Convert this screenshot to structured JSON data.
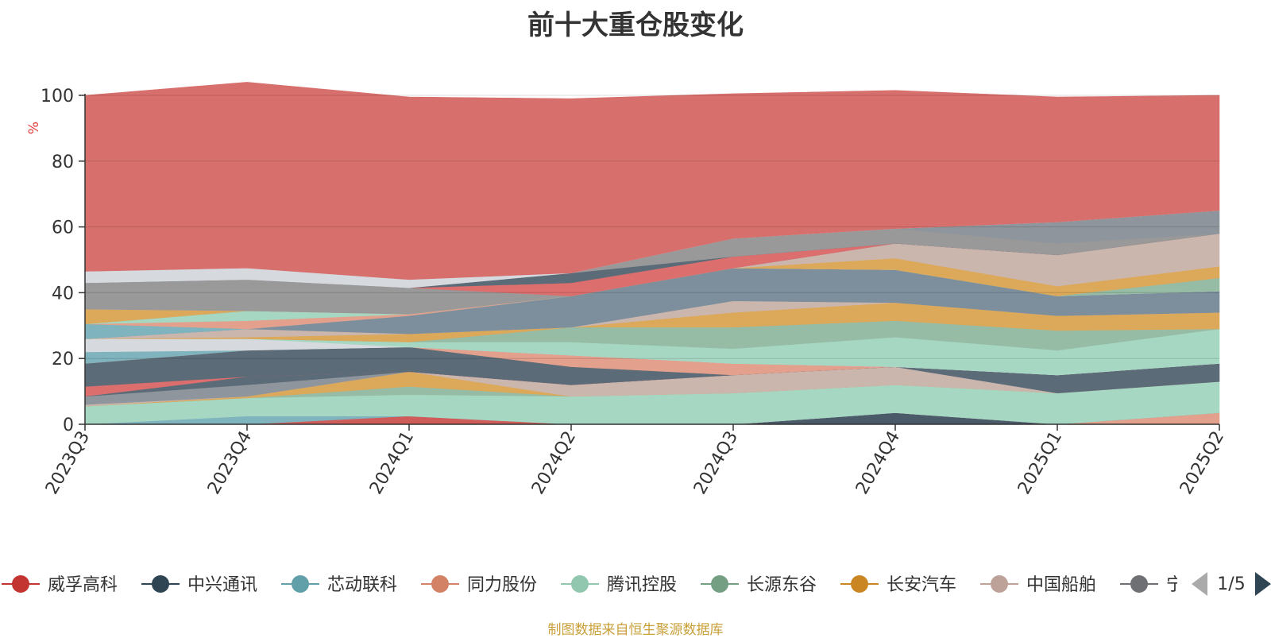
{
  "chart_data": {
    "type": "area",
    "title": "前十大重仓股变化",
    "ylabel": "%",
    "ylim": [
      0,
      100
    ],
    "yticks": [
      0,
      20,
      40,
      60,
      80,
      100
    ],
    "grid": true,
    "x": [
      "2023Q3",
      "2023Q4",
      "2024Q1",
      "2024Q2",
      "2024Q3",
      "2024Q4",
      "2025Q1",
      "2025Q2"
    ],
    "series": [
      {
        "name": "中兴通讯",
        "color": "#4a5a68",
        "values": [
          0,
          0,
          0,
          0,
          0,
          3.5,
          0,
          0
        ]
      },
      {
        "name": "同力股份",
        "color": "#e3a08c",
        "values": [
          0,
          0,
          0,
          0,
          0,
          0,
          0,
          3.5
        ]
      },
      {
        "name": "威孚高科",
        "color": "#d05c5a",
        "values": [
          0,
          0,
          2.5,
          0,
          0,
          0,
          0,
          0
        ]
      },
      {
        "name": "芯动联科",
        "color": "#7fb3bd",
        "values": [
          0,
          2.5,
          0,
          0,
          0,
          0,
          0,
          0
        ]
      },
      {
        "name": "腾讯控股",
        "color": "#a6d7c2",
        "values": [
          5.5,
          5.5,
          6.5,
          8.5,
          9.5,
          8.5,
          9.5,
          9.5
        ]
      },
      {
        "name": "长源东谷",
        "color": "#96bca5",
        "values": [
          0,
          0,
          2.5,
          0,
          0,
          0,
          0,
          0
        ]
      },
      {
        "name": "长安汽车",
        "color": "#dca85a",
        "values": [
          0,
          0.5,
          4.5,
          0,
          0,
          0,
          0,
          0
        ]
      },
      {
        "name": "中国船舶",
        "color": "#cbb6ae",
        "values": [
          0.5,
          0,
          0,
          3.5,
          5.5,
          5.5,
          0,
          0
        ]
      },
      {
        "name": "宁德时代",
        "color": "#8e959c",
        "values": [
          2.5,
          3.5,
          0,
          0,
          0,
          0,
          0,
          0
        ]
      },
      {
        "name": "中兴通讯",
        "color": "#5c6b78",
        "values": [
          0,
          2.5,
          0,
          0,
          0,
          0,
          5.5,
          5.5
        ]
      },
      {
        "name": "威孚高科",
        "color": "#dc6e6e",
        "values": [
          3,
          0,
          0,
          0,
          0,
          0,
          0,
          0
        ]
      },
      {
        "name": "中兴通讯",
        "color": "#5c6b78",
        "values": [
          7,
          8,
          7.5,
          5.5,
          0,
          0,
          0,
          0
        ]
      },
      {
        "name": "同力股份",
        "color": "#e3a08c",
        "values": [
          0,
          0,
          0,
          3.5,
          3.5,
          0,
          0,
          0
        ]
      },
      {
        "name": "芯动联科",
        "color": "#7fb3bd",
        "values": [
          3.5,
          0,
          0,
          0,
          0,
          0,
          0,
          0
        ]
      },
      {
        "name": "宁德时代",
        "color": "#d6dade",
        "values": [
          4,
          3.5,
          0,
          0,
          0,
          0,
          0,
          0
        ]
      },
      {
        "name": "腾讯控股",
        "color": "#a6d7c2",
        "values": [
          0,
          0,
          1.5,
          4,
          4.5,
          9,
          7.5,
          10.5
        ]
      },
      {
        "name": "长源东谷",
        "color": "#96bca5",
        "values": [
          0,
          0,
          0,
          4.5,
          6.5,
          5,
          6,
          0
        ]
      },
      {
        "name": "长安汽车",
        "color": "#dca85a",
        "values": [
          0,
          0.5,
          2.5,
          0,
          4.5,
          5.5,
          4.5,
          5
        ]
      },
      {
        "name": "中国船舶",
        "color": "#cbb6ae",
        "values": [
          0,
          2.5,
          0,
          0,
          3.5,
          0,
          0,
          0
        ]
      },
      {
        "name": "宁德时代",
        "color": "#7d8f9c",
        "values": [
          0,
          0,
          5.5,
          9.5,
          10,
          10,
          6,
          6.5
        ]
      },
      {
        "name": "芯动联科",
        "color": "#7fb3bd",
        "values": [
          4.5,
          0,
          0,
          0,
          0,
          0,
          0,
          0
        ]
      },
      {
        "name": "同力股份",
        "color": "#e3a08c",
        "values": [
          0,
          2.5,
          0.5,
          0,
          0,
          0,
          0,
          0
        ]
      },
      {
        "name": "腾讯控股",
        "color": "#a6d7c2",
        "values": [
          0,
          3,
          0,
          0,
          0,
          0,
          0,
          0
        ]
      },
      {
        "name": "长源东谷",
        "color": "#96bca5",
        "values": [
          0,
          0,
          0,
          0,
          0,
          0,
          0,
          4
        ]
      },
      {
        "name": "长安汽车",
        "color": "#dca85a",
        "values": [
          4.5,
          0,
          0,
          0,
          0,
          3.5,
          3,
          3.5
        ]
      },
      {
        "name": "中国船舶",
        "color": "#cbb6ae",
        "values": [
          0,
          0,
          0,
          0,
          0,
          4.5,
          9.5,
          10
        ]
      },
      {
        "name": "宁德时代",
        "color": "#999999",
        "values": [
          8,
          9.5,
          8,
          0,
          0,
          0,
          0,
          0
        ]
      },
      {
        "name": "威孚高科",
        "color": "#dc6e6e",
        "values": [
          0,
          0,
          0,
          4,
          3.5,
          0,
          0,
          0
        ]
      },
      {
        "name": "中兴通讯",
        "color": "#5c6b78",
        "values": [
          0,
          0,
          0,
          3,
          0,
          0,
          0,
          0
        ]
      },
      {
        "name": "宁德时代",
        "color": "#999999",
        "values": [
          0,
          0,
          0,
          0,
          5.5,
          4.5,
          3.5,
          0
        ]
      },
      {
        "name": "宁德时代",
        "color": "#8e959c",
        "values": [
          0,
          0,
          0,
          0,
          0,
          0,
          6.5,
          7
        ]
      },
      {
        "name": "宁德时代",
        "color": "#d6dade",
        "values": [
          3.5,
          3.5,
          2.5,
          0,
          0,
          0,
          0,
          0
        ]
      },
      {
        "name": "威孚高科",
        "color": "#d76f6d",
        "values": [
          53.5,
          56.5,
          55.5,
          53,
          44,
          42,
          38,
          35
        ]
      }
    ]
  },
  "legend": {
    "items": [
      {
        "name": "威孚高科",
        "color": "#c23531"
      },
      {
        "name": "中兴通讯",
        "color": "#2f4554"
      },
      {
        "name": "芯动联科",
        "color": "#61a0a8"
      },
      {
        "name": "同力股份",
        "color": "#d48265"
      },
      {
        "name": "腾讯控股",
        "color": "#91c7ae"
      },
      {
        "name": "长源东谷",
        "color": "#749f83"
      },
      {
        "name": "长安汽车",
        "color": "#ca8622"
      },
      {
        "name": "中国船舶",
        "color": "#bda29a"
      },
      {
        "name": "宁德时代",
        "color": "#6e7074"
      }
    ],
    "page": "1/5",
    "prev_icon": "triangle-left-icon",
    "next_icon": "triangle-right-icon"
  },
  "source_text": "制图数据来自恒生聚源数据库"
}
